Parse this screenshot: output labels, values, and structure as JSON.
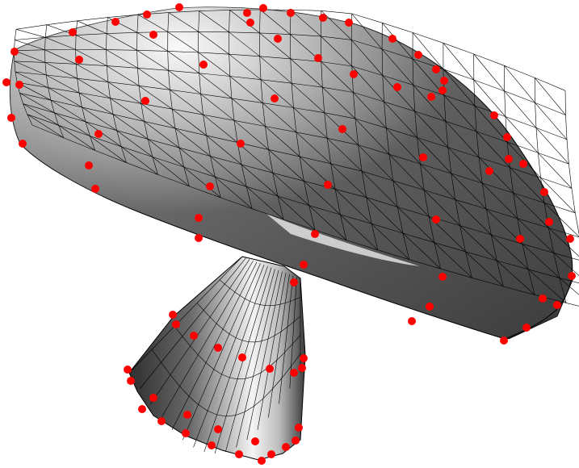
{
  "figure": {
    "background": "#ffffff",
    "mesh_color": "#000000",
    "marker_color": "#ff0000",
    "shading_dark": "#3a3a3a",
    "shading_light": "#f2f2f2",
    "objects": [
      "mushroom-cap",
      "mushroom-stem"
    ]
  }
}
